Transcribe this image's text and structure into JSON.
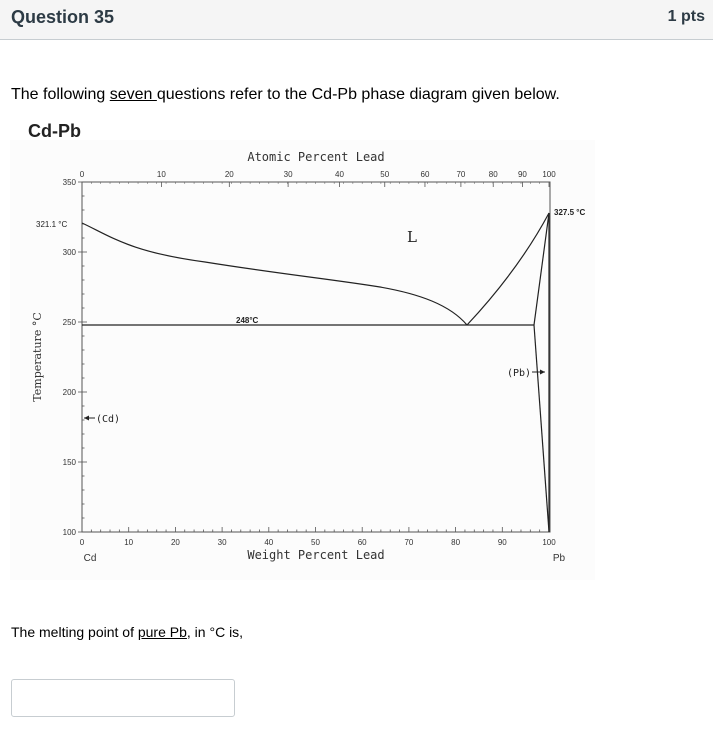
{
  "question": {
    "title": "Question 35",
    "points": "1 pts"
  },
  "intro": {
    "before": "The following ",
    "underlined": "seven ",
    "after": "questions refer to the Cd-Pb phase diagram given below."
  },
  "figure": {
    "title": "Cd-Pb",
    "top_axis_label": "Atomic Percent Lead",
    "top_ticks": [
      "0",
      "10",
      "20",
      "30",
      "40",
      "50",
      "60",
      "70",
      "80",
      "90",
      "100"
    ],
    "bottom_axis_label": "Weight Percent Lead",
    "bottom_ticks": [
      "0",
      "10",
      "20",
      "30",
      "40",
      "50",
      "60",
      "70",
      "80",
      "90",
      "100"
    ],
    "y_axis_label": "Temperature °C",
    "y_ticks": [
      "350",
      "300",
      "250",
      "200",
      "150",
      "100"
    ],
    "label_cd_melt": "321.1 °C",
    "label_pb_melt": "327.5 °C",
    "label_eutectic": "248°C",
    "label_liquid": "L",
    "label_cd_phase": "(Cd)",
    "label_pb_phase": "(Pb)",
    "label_cd": "Cd",
    "label_pb": "Pb"
  },
  "chart_data": {
    "type": "diagram",
    "title": "Cd-Pb",
    "xlabel": "Weight Percent Lead",
    "x2label": "Atomic Percent Lead",
    "ylabel": "Temperature °C",
    "xlim": [
      0,
      100
    ],
    "ylim": [
      100,
      350
    ],
    "melting_points": {
      "Cd": 321.1,
      "Pb": 327.5
    },
    "eutectic": {
      "temperature": 248,
      "composition_wt_pct_Pb": 82.6
    },
    "liquidus_cd_side": [
      [
        0,
        321.1
      ],
      [
        5,
        311
      ],
      [
        10,
        302
      ],
      [
        20,
        293
      ],
      [
        30,
        287
      ],
      [
        40,
        282
      ],
      [
        50,
        277
      ],
      [
        60,
        271
      ],
      [
        70,
        263
      ],
      [
        78,
        255
      ],
      [
        82.6,
        248
      ]
    ],
    "liquidus_pb_side": [
      [
        82.6,
        248
      ],
      [
        90,
        270
      ],
      [
        100,
        327.5
      ]
    ],
    "solidus_pb_side": [
      [
        96.5,
        248
      ],
      [
        100,
        327.5
      ]
    ],
    "solvus_pb_side": [
      [
        96.5,
        248
      ],
      [
        99.9,
        100
      ]
    ]
  },
  "prompt": {
    "before": "The melting point of ",
    "underlined": "pure Pb",
    "after": ", in °C is,"
  },
  "answer": {
    "value": ""
  }
}
